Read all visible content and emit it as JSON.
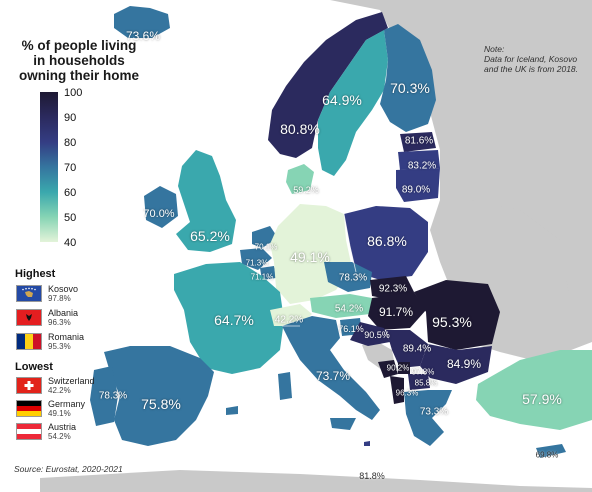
{
  "title_lines": [
    "% of people living",
    "in households",
    "owning their home"
  ],
  "note_lines": [
    "Note:",
    "Data for Iceland, Kosovo",
    "and the UK is from 2018."
  ],
  "legend": {
    "ticks": [
      "100",
      "90",
      "80",
      "70",
      "60",
      "50",
      "40"
    ],
    "colors": [
      "#1e1933",
      "#2b2a5e",
      "#343d83",
      "#35759f",
      "#3aa8ad",
      "#86d4b4",
      "#e3f3d9"
    ]
  },
  "highest": {
    "heading": "Highest",
    "items": [
      {
        "name": "Kosovo",
        "value": "97.8%",
        "flag": "kosovo"
      },
      {
        "name": "Albania",
        "value": "96.3%",
        "flag": "albania"
      },
      {
        "name": "Romania",
        "value": "95.3%",
        "flag": "romania"
      }
    ]
  },
  "lowest": {
    "heading": "Lowest",
    "items": [
      {
        "name": "Switzerland",
        "value": "42.2%",
        "flag": "switzerland"
      },
      {
        "name": "Germany",
        "value": "49.1%",
        "flag": "germany"
      },
      {
        "name": "Austria",
        "value": "54.2%",
        "flag": "austria"
      }
    ]
  },
  "source": "Source: Eurostat, 2020-2021",
  "countries": [
    {
      "name": "Iceland",
      "value": "73.6%"
    },
    {
      "name": "Norway",
      "value": "80.8%"
    },
    {
      "name": "Sweden",
      "value": "64.9%"
    },
    {
      "name": "Finland",
      "value": "70.3%"
    },
    {
      "name": "Estonia",
      "value": "81.6%"
    },
    {
      "name": "Latvia",
      "value": "83.2%"
    },
    {
      "name": "Lithuania",
      "value": "89.0%"
    },
    {
      "name": "Denmark",
      "value": "59.2%"
    },
    {
      "name": "Ireland",
      "value": "70.0%"
    },
    {
      "name": "United Kingdom",
      "value": "65.2%"
    },
    {
      "name": "Netherlands",
      "value": "70.1%"
    },
    {
      "name": "Belgium",
      "value": "71.3%"
    },
    {
      "name": "Luxembourg",
      "value": "71.1%"
    },
    {
      "name": "Germany",
      "value": "49.1%"
    },
    {
      "name": "Poland",
      "value": "86.8%"
    },
    {
      "name": "Czechia",
      "value": "78.3%"
    },
    {
      "name": "Slovakia",
      "value": "92.3%"
    },
    {
      "name": "Austria",
      "value": "54.2%"
    },
    {
      "name": "Hungary",
      "value": "91.7%"
    },
    {
      "name": "Romania",
      "value": "95.3%"
    },
    {
      "name": "France",
      "value": "64.7%"
    },
    {
      "name": "Switzerland",
      "value": "42.2%"
    },
    {
      "name": "Slovenia",
      "value": "76.1%"
    },
    {
      "name": "Croatia",
      "value": "90.5%"
    },
    {
      "name": "Serbia",
      "value": "89.4%"
    },
    {
      "name": "Bulgaria",
      "value": "84.9%"
    },
    {
      "name": "Italy",
      "value": "73.7%"
    },
    {
      "name": "Montenegro",
      "value": "90.2%"
    },
    {
      "name": "Kosovo",
      "value": "97.8%"
    },
    {
      "name": "North Macedonia",
      "value": "85.8%"
    },
    {
      "name": "Albania",
      "value": "96.3%"
    },
    {
      "name": "Greece",
      "value": "73.3%"
    },
    {
      "name": "Turkey",
      "value": "57.9%"
    },
    {
      "name": "Portugal",
      "value": "78.3%"
    },
    {
      "name": "Spain",
      "value": "75.8%"
    },
    {
      "name": "Cyprus",
      "value": "69.8%"
    },
    {
      "name": "Malta",
      "value": "81.8%"
    }
  ]
}
